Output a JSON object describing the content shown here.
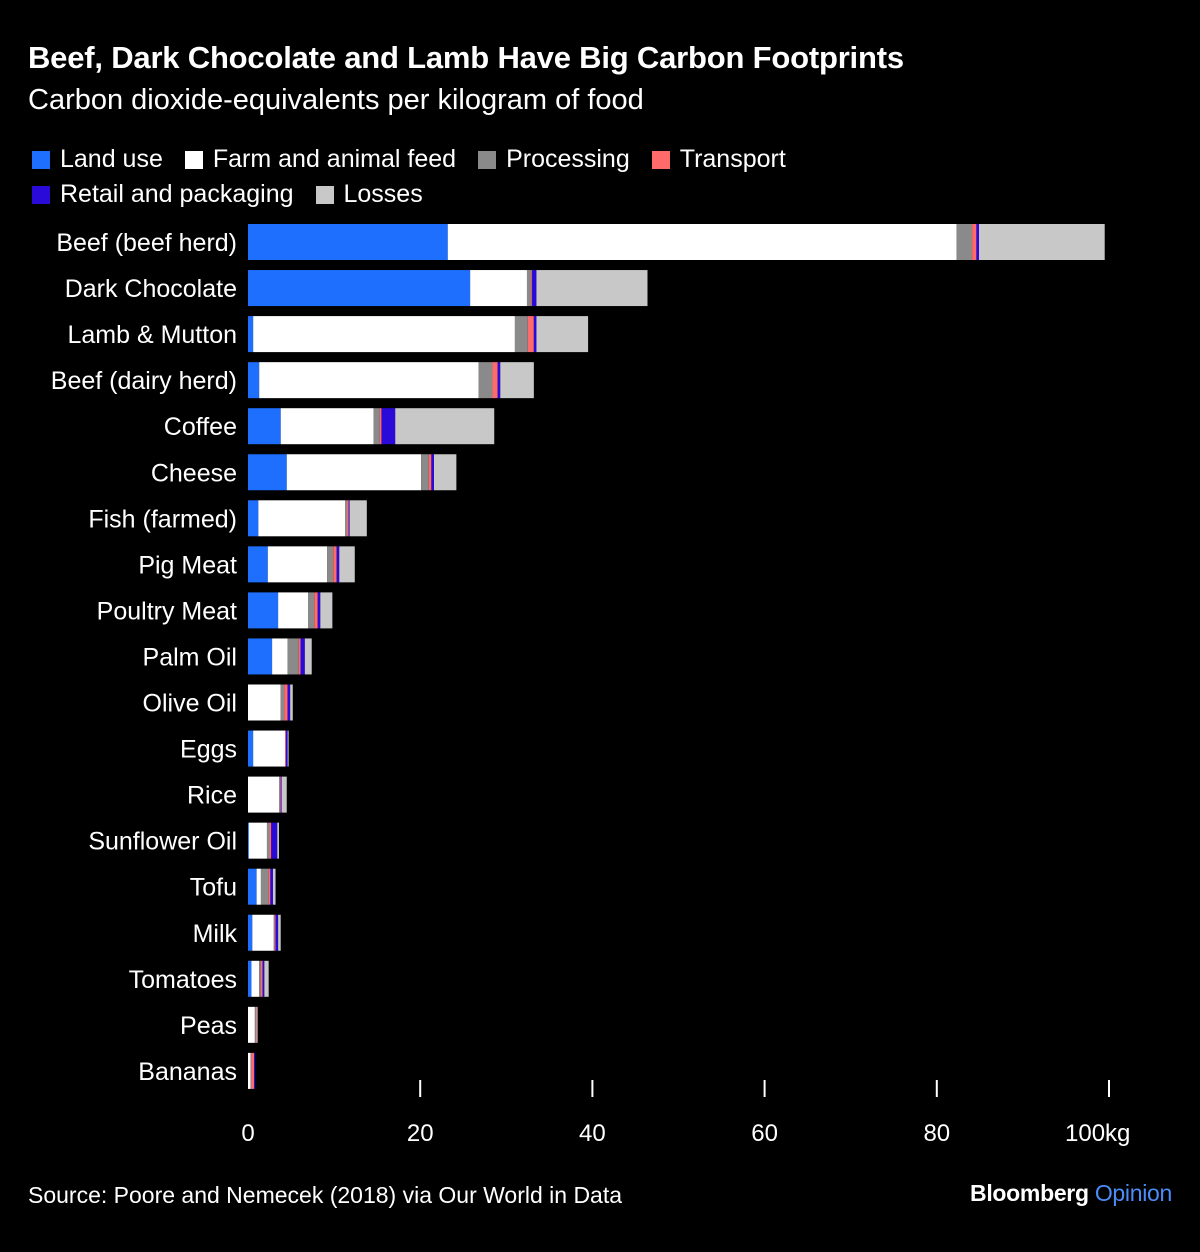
{
  "title": "Beef, Dark Chocolate and Lamb Have Big Carbon Footprints",
  "subtitle": "Carbon dioxide-equivalents per kilogram of food",
  "source": "Source: Poore and Nemecek (2018) via Our World in Data",
  "brand": {
    "part1": "Bloomberg",
    "part2": "Opinion"
  },
  "colors": {
    "background": "#000000",
    "land_use": "#1f6fff",
    "farm": "#ffffff",
    "processing": "#8a8a8a",
    "transport": "#ff6a6a",
    "retail": "#2a0ad8",
    "losses": "#c8c8c8",
    "brand_accent": "#4a8df8"
  },
  "chart_data": {
    "type": "bar",
    "orientation": "horizontal",
    "stacked": true,
    "categories": [
      "Beef (beef herd)",
      "Dark Chocolate",
      "Lamb & Mutton",
      "Beef (dairy herd)",
      "Coffee",
      "Cheese",
      "Fish (farmed)",
      "Pig Meat",
      "Poultry Meat",
      "Palm Oil",
      "Olive Oil",
      "Eggs",
      "Rice",
      "Sunflower Oil",
      "Tofu",
      "Milk",
      "Tomatoes",
      "Peas",
      "Bananas"
    ],
    "series": [
      {
        "name": "Land use",
        "color": "#1f6fff",
        "values": [
          23.2,
          25.8,
          0.6,
          1.3,
          3.8,
          4.5,
          1.2,
          2.3,
          3.5,
          2.8,
          0,
          0.6,
          0,
          0.1,
          1.0,
          0.5,
          0.4,
          0,
          0
        ]
      },
      {
        "name": "Farm and animal feed",
        "color": "#ffffff",
        "values": [
          59.1,
          6.6,
          30.4,
          25.5,
          10.8,
          15.6,
          10.1,
          6.9,
          3.5,
          1.8,
          3.8,
          3.7,
          3.6,
          2.1,
          0.5,
          2.5,
          0.9,
          0.8,
          0.3
        ]
      },
      {
        "name": "Processing",
        "color": "#8a8a8a",
        "values": [
          1.8,
          0.5,
          1.5,
          1.6,
          0.7,
          0.9,
          0.2,
          0.7,
          0.7,
          1.3,
          0.4,
          0,
          0.1,
          0.3,
          0.9,
          0.1,
          0.2,
          0.1,
          0.1
        ]
      },
      {
        "name": "Transport",
        "color": "#ff6a6a",
        "values": [
          0.5,
          0.1,
          0.7,
          0.6,
          0.2,
          0.3,
          0.2,
          0.4,
          0.4,
          0.2,
          0.4,
          0.1,
          0.1,
          0.2,
          0.2,
          0.1,
          0.2,
          0.1,
          0.3
        ]
      },
      {
        "name": "Retail and packaging",
        "color": "#2a0ad8",
        "values": [
          0.3,
          0.5,
          0.3,
          0.3,
          1.6,
          0.3,
          0.1,
          0.3,
          0.3,
          0.5,
          0.3,
          0.2,
          0.1,
          0.7,
          0.3,
          0.3,
          0.2,
          0,
          0.1
        ]
      },
      {
        "name": "Losses",
        "color": "#c8c8c8",
        "values": [
          14.6,
          12.9,
          6.0,
          3.9,
          11.5,
          2.6,
          2.0,
          1.8,
          1.4,
          0.8,
          0.3,
          0.1,
          0.6,
          0.2,
          0.3,
          0.3,
          0.5,
          0.1,
          0
        ]
      }
    ],
    "xlim": [
      0,
      100
    ],
    "xticks": [
      0,
      20,
      40,
      60,
      80,
      100
    ],
    "xtick_labels": [
      "0",
      "20",
      "40",
      "60",
      "80",
      "100kg"
    ],
    "grid": false,
    "legend_position": "top-left"
  }
}
